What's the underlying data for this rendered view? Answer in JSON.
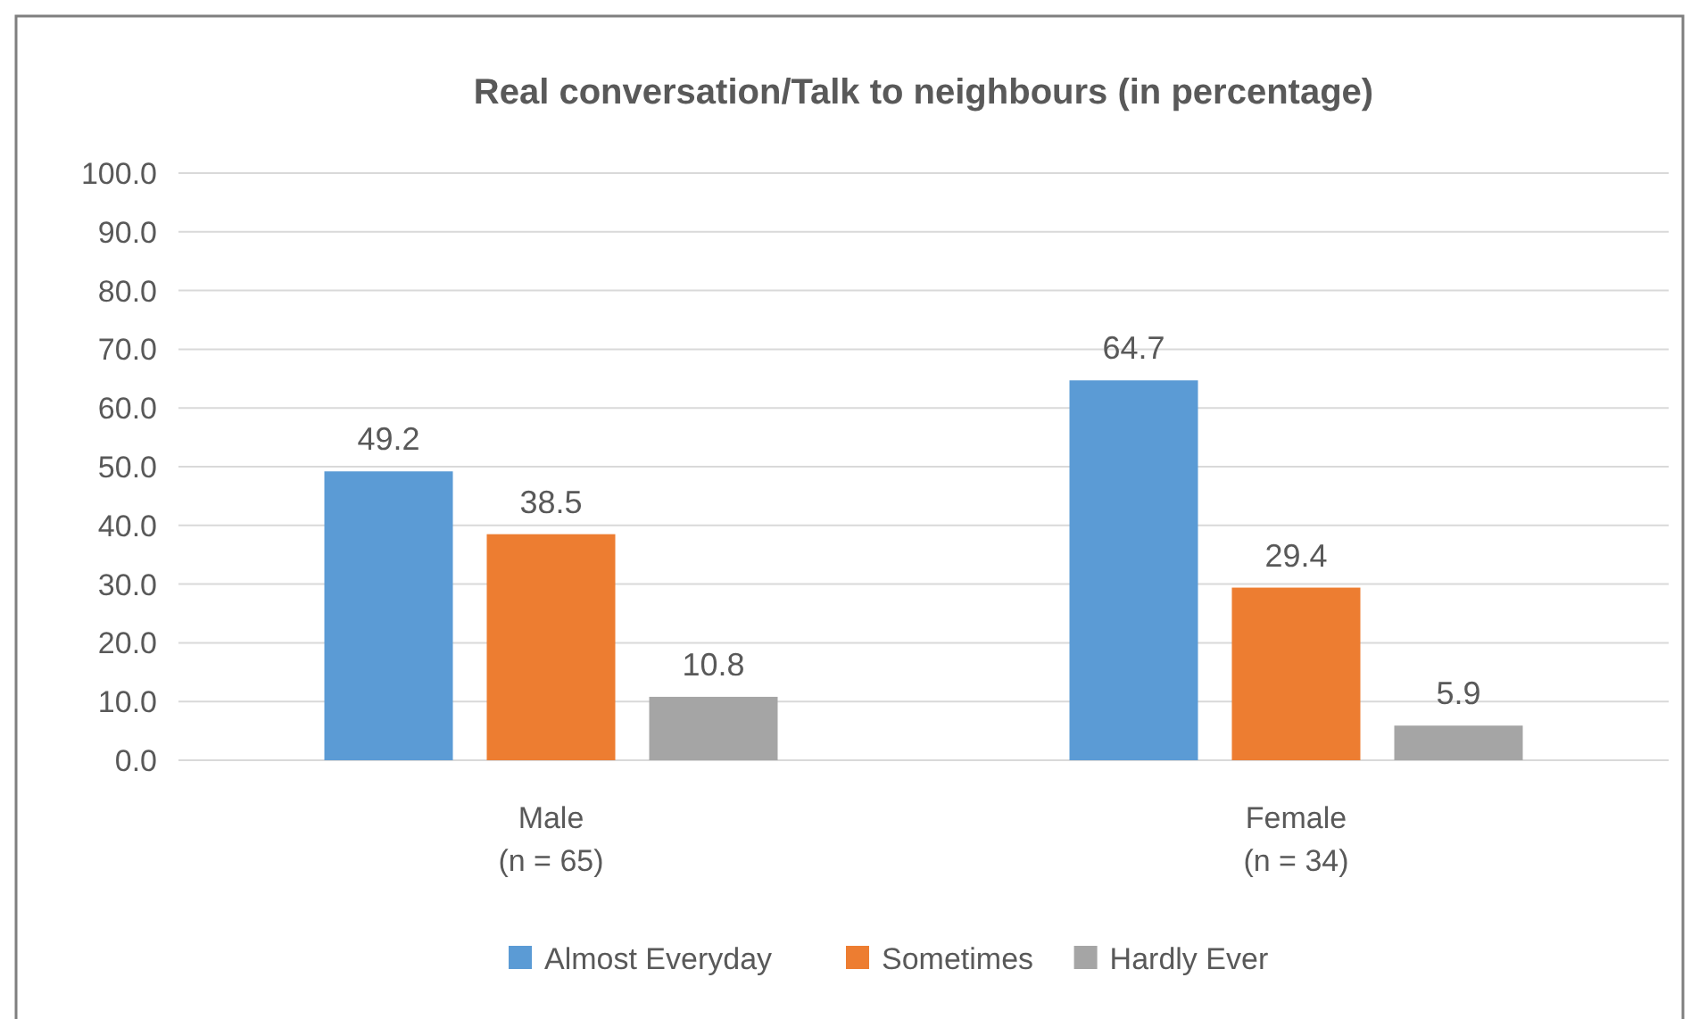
{
  "chart_data": {
    "type": "bar",
    "title": "Real conversation/Talk  to neighbours (in percentage)",
    "categories": [
      "Male\n(n = 65)",
      "Female\n(n = 34)"
    ],
    "series": [
      {
        "name": "Almost Everyday",
        "color": "#5b9bd5",
        "values": [
          49.2,
          64.7
        ]
      },
      {
        "name": "Sometimes",
        "color": "#ed7d31",
        "values": [
          38.5,
          29.4
        ]
      },
      {
        "name": "Hardly Ever",
        "color": "#a5a5a5",
        "values": [
          10.8,
          5.9
        ]
      }
    ],
    "ylim": [
      0,
      100
    ],
    "yticks": [
      {
        "value": 0,
        "label": "0.0"
      },
      {
        "value": 10,
        "label": "10.0"
      },
      {
        "value": 20,
        "label": "20.0"
      },
      {
        "value": 30,
        "label": "30.0"
      },
      {
        "value": 40,
        "label": "40.0"
      },
      {
        "value": 50,
        "label": "50.0"
      },
      {
        "value": 60,
        "label": "60.0"
      },
      {
        "value": 70,
        "label": "70.0"
      },
      {
        "value": 80,
        "label": "80.0"
      },
      {
        "value": 90,
        "label": "90.0"
      },
      {
        "value": 100,
        "label": "100.0"
      }
    ],
    "grid": true,
    "data_labels": true,
    "legend": "bottom"
  }
}
